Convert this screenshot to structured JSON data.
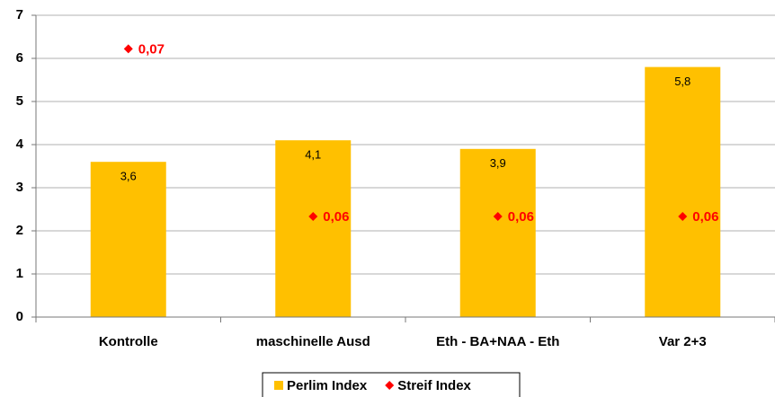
{
  "chart_data": {
    "type": "bar",
    "categories": [
      "Kontrolle",
      "maschinelle Ausd",
      "Eth - BA+NAA - Eth",
      "Var 2+3"
    ],
    "series": [
      {
        "name": "Perlim Index",
        "color": "#ffc000",
        "values": [
          3.6,
          4.1,
          3.9,
          5.8
        ],
        "value_labels": [
          "3,6",
          "4,1",
          "3,9",
          "5,8"
        ]
      },
      {
        "name": "Streif Index",
        "color": "#ff0000",
        "type": "scatter",
        "axis": "y2",
        "values": [
          0.07,
          0.06,
          0.06,
          0.06
        ],
        "value_labels": [
          "0,07",
          "0,06",
          "0,06",
          "0,06"
        ]
      }
    ],
    "ylim": [
      0,
      7
    ],
    "yticks": [
      0,
      1,
      2,
      3,
      4,
      5,
      6,
      7
    ],
    "y2lim": [
      0.054,
      0.072
    ],
    "grid": true,
    "legend": "bottom"
  }
}
